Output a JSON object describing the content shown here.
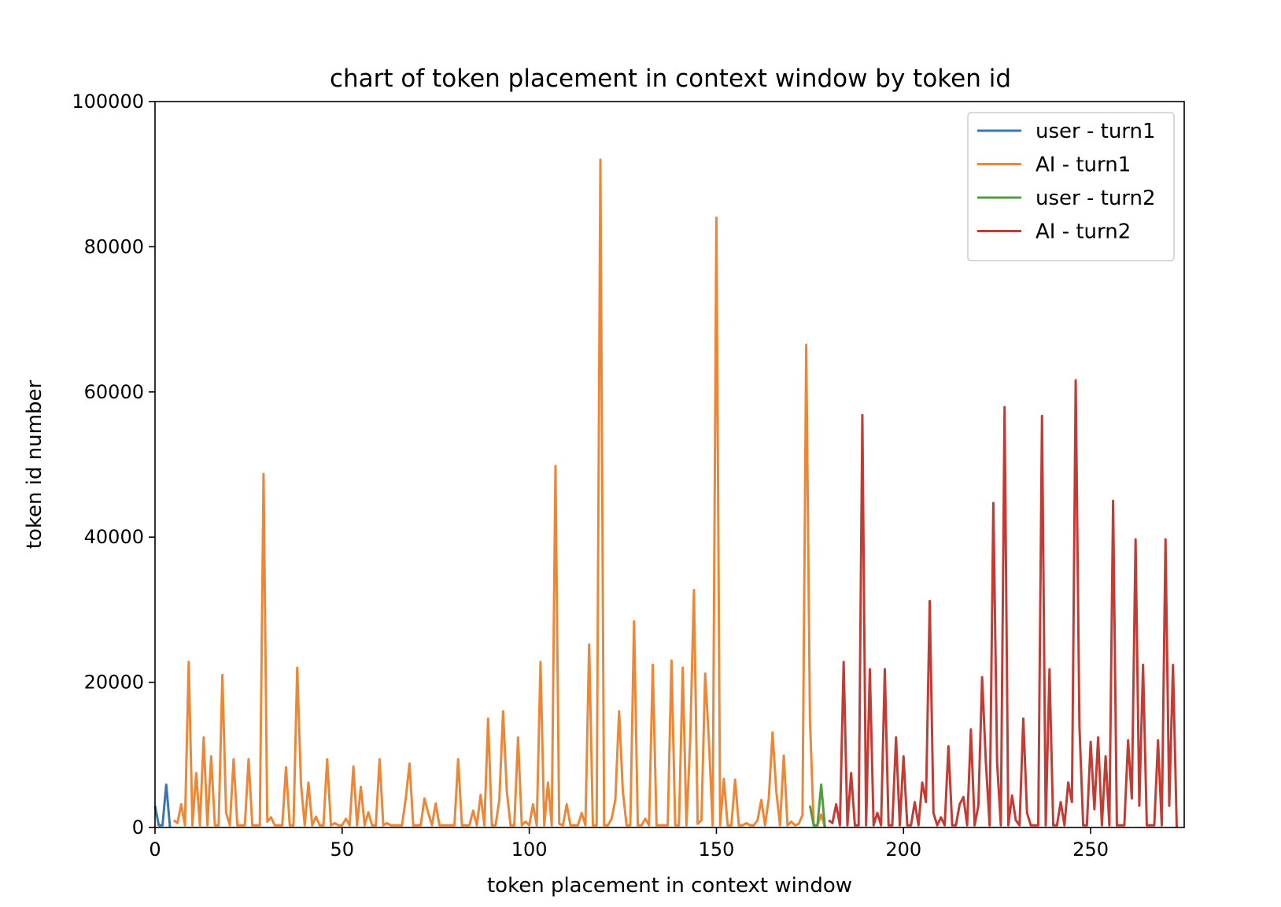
{
  "chart_data": {
    "type": "line",
    "title": "chart of token placement in context window by token id",
    "xlabel": "token placement in context window",
    "ylabel": "token id number",
    "xlim": [
      0,
      275
    ],
    "ylim": [
      0,
      100000
    ],
    "xticks": [
      0,
      50,
      100,
      150,
      200,
      250
    ],
    "yticks": [
      0,
      20000,
      40000,
      60000,
      80000,
      100000
    ],
    "grid": false,
    "legend_position": "top-right",
    "series": [
      {
        "name": "user - turn1",
        "color": "#3a76af",
        "x_start": 0,
        "values": [
          3000,
          300,
          300,
          5900,
          0
        ]
      },
      {
        "name": "AI - turn1",
        "color": "#ef8636",
        "x_start": 5,
        "values": [
          1000,
          600,
          3200,
          300,
          22800,
          300,
          7500,
          300,
          12400,
          300,
          9800,
          300,
          300,
          21000,
          2000,
          300,
          9400,
          300,
          300,
          300,
          9400,
          300,
          300,
          300,
          48700,
          800,
          1400,
          300,
          300,
          300,
          8300,
          300,
          300,
          22000,
          6000,
          300,
          6200,
          300,
          1500,
          300,
          300,
          9400,
          300,
          600,
          300,
          300,
          1200,
          300,
          8400,
          300,
          5600,
          300,
          2100,
          300,
          300,
          9400,
          300,
          600,
          300,
          300,
          300,
          300,
          4000,
          8800,
          300,
          300,
          300,
          4000,
          2000,
          300,
          3300,
          300,
          300,
          300,
          300,
          300,
          9400,
          300,
          300,
          300,
          2300,
          300,
          4500,
          300,
          15000,
          300,
          300,
          3800,
          16000,
          5000,
          300,
          300,
          12400,
          300,
          800,
          300,
          3200,
          300,
          22800,
          300,
          6200,
          300,
          49800,
          500,
          300,
          3200,
          300,
          300,
          300,
          2000,
          300,
          25200,
          300,
          300,
          92000,
          300,
          300,
          1200,
          3800,
          16000,
          5000,
          300,
          300,
          28400,
          300,
          300,
          1200,
          300,
          22400,
          300,
          300,
          300,
          300,
          23000,
          300,
          300,
          22000,
          300,
          12000,
          32700,
          500,
          1000,
          21200,
          12000,
          300,
          84000,
          300,
          6700,
          300,
          300,
          6600,
          300,
          300,
          600,
          300,
          300,
          1000,
          3800,
          300,
          4000,
          13100,
          5000,
          300,
          9900,
          300,
          800,
          300,
          500,
          1700,
          66500,
          14800,
          300,
          300,
          1800,
          0
        ]
      },
      {
        "name": "user - turn2",
        "color": "#519e3e",
        "x_start": 175,
        "values": [
          3000,
          300,
          300,
          5900,
          0
        ]
      },
      {
        "name": "AI - turn2",
        "color": "#c53a32",
        "x_start": 180,
        "values": [
          1000,
          600,
          3200,
          300,
          22800,
          300,
          7500,
          300,
          300,
          56800,
          300,
          21800,
          300,
          2000,
          300,
          21800,
          300,
          300,
          12400,
          300,
          9800,
          300,
          300,
          3500,
          300,
          6200,
          3500,
          31200,
          2000,
          300,
          1400,
          300,
          11200,
          300,
          300,
          3200,
          4200,
          300,
          13500,
          300,
          3000,
          20700,
          9000,
          300,
          44700,
          9000,
          300,
          57900,
          300,
          4400,
          1000,
          300,
          15000,
          2000,
          300,
          300,
          300,
          56700,
          300,
          21800,
          300,
          300,
          3500,
          300,
          6200,
          3500,
          61600,
          14000,
          300,
          300,
          11800,
          2500,
          12400,
          300,
          9800,
          300,
          45000,
          300,
          300,
          300,
          12000,
          4000,
          39700,
          3000,
          22400,
          300,
          300,
          300,
          12000,
          300,
          39700,
          3000,
          22400,
          0
        ]
      }
    ]
  }
}
